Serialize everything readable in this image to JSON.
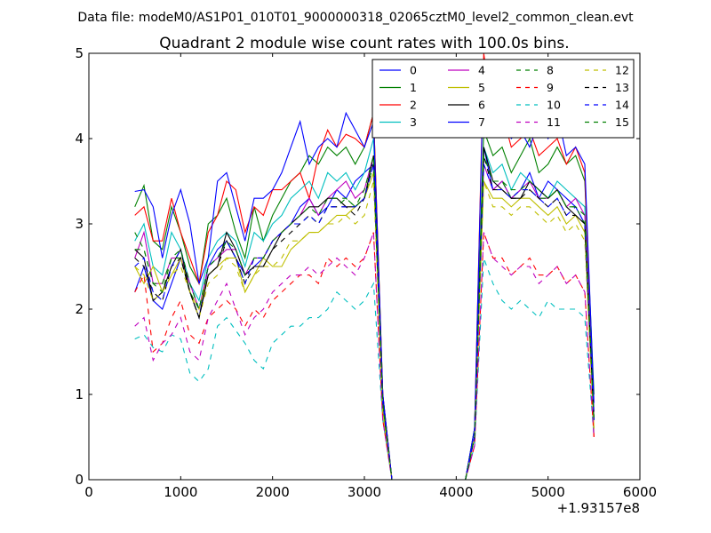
{
  "figure": {
    "suptitle": "Data file: modeM0/AS1P01_010T01_9000000318_02065cztM0_level2_common_clean.evt"
  },
  "chart_data": {
    "type": "line",
    "title": "Quadrant 2 module wise count rates with 100.0s bins.",
    "xlabel": "",
    "ylabel": "",
    "x_offset_label": "+1.93157e8",
    "xlim": [
      0,
      6000
    ],
    "ylim": [
      0,
      5
    ],
    "xticks": [
      0,
      1000,
      2000,
      3000,
      4000,
      5000,
      6000
    ],
    "yticks": [
      0,
      1,
      2,
      3,
      4,
      5
    ],
    "grid": false,
    "legend": {
      "placement": "top-right",
      "columns": 4
    },
    "x": [
      500,
      600,
      700,
      800,
      900,
      1000,
      1100,
      1200,
      1300,
      1400,
      1500,
      1600,
      1700,
      1800,
      1900,
      2000,
      2100,
      2200,
      2300,
      2400,
      2500,
      2600,
      2700,
      2800,
      2900,
      3000,
      3100,
      3200,
      3300,
      3400,
      3500,
      3600,
      3700,
      3800,
      3900,
      4000,
      4100,
      4200,
      4300,
      4400,
      4500,
      4600,
      4700,
      4800,
      4900,
      5000,
      5100,
      5200,
      5300,
      5400,
      5500
    ],
    "series": [
      {
        "name": "0",
        "color": "#0000ff",
        "dash": "solid",
        "values": [
          2.2,
          2.5,
          2.1,
          2.0,
          2.3,
          2.6,
          2.2,
          1.9,
          2.5,
          2.7,
          2.8,
          2.6,
          2.4,
          2.5,
          2.6,
          2.8,
          2.9,
          3.0,
          3.2,
          3.3,
          3.1,
          3.2,
          3.4,
          3.3,
          3.5,
          3.6,
          3.7,
          1.0,
          0,
          0,
          0,
          0,
          0,
          0,
          0,
          0,
          0,
          0.6,
          3.9,
          3.4,
          3.5,
          3.3,
          3.4,
          3.6,
          3.3,
          3.5,
          3.4,
          3.3,
          3.2,
          3.0,
          0.8
        ]
      },
      {
        "name": "1",
        "color": "#008000",
        "dash": "solid",
        "values": [
          3.2,
          3.45,
          2.8,
          2.7,
          3.2,
          2.9,
          2.5,
          2.3,
          3.0,
          3.1,
          3.3,
          2.9,
          2.6,
          3.2,
          2.8,
          3.1,
          3.3,
          3.5,
          3.6,
          3.8,
          3.7,
          3.9,
          3.8,
          3.9,
          3.7,
          3.9,
          4.3,
          1.0,
          0,
          0,
          0,
          0,
          0,
          0,
          0,
          0,
          0,
          0.6,
          4.1,
          3.8,
          3.9,
          3.6,
          3.8,
          4.0,
          3.6,
          3.7,
          3.9,
          3.7,
          3.8,
          3.5,
          1.0
        ]
      },
      {
        "name": "2",
        "color": "#ff0000",
        "dash": "solid",
        "values": [
          3.1,
          3.2,
          2.8,
          2.8,
          3.3,
          2.9,
          2.6,
          2.3,
          2.9,
          3.1,
          3.5,
          3.4,
          2.9,
          3.2,
          3.1,
          3.4,
          3.4,
          3.5,
          3.6,
          3.3,
          3.8,
          4.1,
          3.9,
          4.05,
          4.0,
          3.9,
          4.3,
          1.0,
          0,
          0,
          0,
          0,
          0,
          0,
          0,
          0,
          0,
          0.6,
          5.0,
          4.2,
          4.3,
          3.9,
          4.0,
          4.1,
          3.8,
          3.9,
          4.0,
          3.7,
          3.9,
          3.6,
          0.5
        ]
      },
      {
        "name": "3",
        "color": "#00bfbf",
        "dash": "solid",
        "values": [
          2.8,
          3.0,
          2.5,
          2.4,
          2.9,
          2.7,
          2.3,
          2.1,
          2.6,
          2.8,
          2.9,
          2.8,
          2.5,
          2.9,
          2.8,
          3.0,
          3.1,
          3.3,
          3.4,
          3.5,
          3.3,
          3.6,
          3.5,
          3.6,
          3.4,
          3.6,
          4.0,
          0.9,
          0,
          0,
          0,
          0,
          0,
          0,
          0,
          0,
          0,
          0.6,
          3.9,
          3.6,
          3.7,
          3.4,
          3.6,
          3.5,
          3.4,
          3.3,
          3.5,
          3.4,
          3.3,
          3.2,
          0.7
        ]
      },
      {
        "name": "4",
        "color": "#bf00bf",
        "dash": "solid",
        "values": [
          2.6,
          2.9,
          2.3,
          2.3,
          2.6,
          2.6,
          2.3,
          2.0,
          2.5,
          2.6,
          2.7,
          2.7,
          2.4,
          2.6,
          2.6,
          2.8,
          2.9,
          3.0,
          3.1,
          3.3,
          3.1,
          3.3,
          3.4,
          3.5,
          3.3,
          3.4,
          3.8,
          0.9,
          0,
          0,
          0,
          0,
          0,
          0,
          0,
          0,
          0,
          0.5,
          3.7,
          3.4,
          3.5,
          3.3,
          3.4,
          3.5,
          3.3,
          3.3,
          3.4,
          3.2,
          3.3,
          3.1,
          0.7
        ]
      },
      {
        "name": "5",
        "color": "#bfbf00",
        "dash": "solid",
        "values": [
          2.5,
          2.3,
          2.5,
          2.2,
          2.4,
          2.6,
          2.2,
          2.0,
          2.4,
          2.5,
          2.6,
          2.6,
          2.2,
          2.4,
          2.6,
          2.5,
          2.5,
          2.7,
          2.8,
          2.9,
          2.9,
          3.0,
          3.1,
          3.1,
          3.2,
          3.3,
          3.6,
          0.8,
          0,
          0,
          0,
          0,
          0,
          0,
          0,
          0,
          0,
          0.5,
          3.5,
          3.3,
          3.3,
          3.2,
          3.3,
          3.3,
          3.2,
          3.1,
          3.2,
          3.0,
          3.1,
          2.9,
          0.6
        ]
      },
      {
        "name": "6",
        "color": "#000000",
        "dash": "solid",
        "values": [
          2.7,
          2.6,
          2.1,
          2.2,
          2.5,
          2.7,
          2.2,
          1.9,
          2.4,
          2.5,
          2.9,
          2.7,
          2.4,
          2.5,
          2.5,
          2.7,
          2.9,
          3.0,
          3.1,
          3.2,
          3.2,
          3.3,
          3.3,
          3.2,
          3.2,
          3.3,
          3.8,
          0.9,
          0,
          0,
          0,
          0,
          0,
          0,
          0,
          0,
          0,
          0.5,
          3.9,
          3.5,
          3.4,
          3.3,
          3.3,
          3.5,
          3.4,
          3.3,
          3.4,
          3.2,
          3.1,
          3.0,
          0.7
        ]
      },
      {
        "name": "7",
        "color": "#0000ff",
        "dash": "solid",
        "values": [
          3.38,
          3.4,
          3.2,
          2.6,
          3.1,
          3.4,
          3.0,
          2.3,
          2.6,
          3.5,
          3.6,
          3.2,
          2.8,
          3.3,
          3.3,
          3.4,
          3.6,
          3.9,
          4.2,
          3.7,
          3.9,
          4.0,
          3.9,
          4.3,
          4.1,
          3.9,
          4.2,
          1.0,
          0,
          0,
          0,
          0,
          0,
          0,
          0,
          0,
          0,
          0.6,
          4.9,
          4.2,
          4.2,
          4.0,
          4.1,
          3.9,
          4.2,
          4.0,
          4.3,
          3.8,
          3.9,
          3.7,
          0.9
        ]
      },
      {
        "name": "8",
        "color": "#008000",
        "dash": "dashed",
        "values": [
          2.9,
          2.7,
          2.3,
          2.2,
          2.6,
          2.6,
          2.2,
          2.0,
          2.5,
          2.6,
          2.8,
          2.6,
          2.3,
          2.6,
          2.6,
          2.8,
          2.9,
          3.0,
          3.0,
          3.1,
          3.0,
          3.2,
          3.2,
          3.3,
          3.2,
          3.3,
          3.7,
          0.9,
          0,
          0,
          0,
          0,
          0,
          0,
          0,
          0,
          0,
          0.5,
          3.8,
          3.5,
          3.5,
          3.3,
          3.4,
          3.4,
          3.3,
          3.3,
          3.4,
          3.2,
          3.2,
          3.0,
          0.7
        ]
      },
      {
        "name": "9",
        "color": "#ff0000",
        "dash": "dashed",
        "values": [
          2.2,
          2.4,
          1.5,
          1.6,
          1.9,
          2.1,
          1.7,
          1.6,
          1.9,
          2.0,
          2.1,
          2.0,
          1.8,
          2.0,
          1.9,
          2.1,
          2.2,
          2.3,
          2.4,
          2.4,
          2.3,
          2.6,
          2.5,
          2.6,
          2.5,
          2.6,
          2.9,
          0.7,
          0,
          0,
          0,
          0,
          0,
          0,
          0,
          0,
          0,
          0.4,
          2.9,
          2.6,
          2.6,
          2.4,
          2.5,
          2.6,
          2.4,
          2.4,
          2.5,
          2.3,
          2.4,
          2.2,
          0.5
        ]
      },
      {
        "name": "10",
        "color": "#00bfbf",
        "dash": "dashed",
        "values": [
          1.65,
          1.7,
          1.55,
          1.5,
          1.7,
          1.65,
          1.25,
          1.15,
          1.3,
          1.8,
          1.9,
          1.75,
          1.6,
          1.4,
          1.3,
          1.6,
          1.7,
          1.8,
          1.8,
          1.9,
          1.9,
          2.0,
          2.2,
          2.1,
          2.0,
          2.1,
          2.3,
          0.7,
          0,
          0,
          0,
          0,
          0,
          0,
          0,
          0,
          0,
          0.4,
          2.6,
          2.3,
          2.1,
          2.0,
          2.1,
          2.0,
          1.9,
          2.1,
          2.0,
          2.0,
          2.0,
          1.9,
          0.5
        ]
      },
      {
        "name": "11",
        "color": "#bf00bf",
        "dash": "dashed",
        "values": [
          1.8,
          1.9,
          1.4,
          1.6,
          1.7,
          1.9,
          1.5,
          1.4,
          1.9,
          2.1,
          2.3,
          2.0,
          1.7,
          1.9,
          2.0,
          2.2,
          2.3,
          2.4,
          2.4,
          2.5,
          2.4,
          2.5,
          2.6,
          2.5,
          2.4,
          2.6,
          2.9,
          0.7,
          0,
          0,
          0,
          0,
          0,
          0,
          0,
          0,
          0,
          0.4,
          2.9,
          2.6,
          2.5,
          2.4,
          2.5,
          2.5,
          2.3,
          2.4,
          2.5,
          2.3,
          2.4,
          2.2,
          0.5
        ]
      },
      {
        "name": "12",
        "color": "#bfbf00",
        "dash": "dashed",
        "values": [
          2.5,
          2.4,
          2.1,
          2.2,
          2.4,
          2.5,
          2.2,
          1.9,
          2.3,
          2.4,
          2.6,
          2.5,
          2.2,
          2.4,
          2.5,
          2.5,
          2.6,
          2.8,
          2.8,
          2.9,
          2.9,
          3.0,
          3.0,
          3.1,
          3.0,
          3.1,
          3.5,
          0.8,
          0,
          0,
          0,
          0,
          0,
          0,
          0,
          0,
          0,
          0.5,
          3.5,
          3.2,
          3.2,
          3.1,
          3.2,
          3.2,
          3.1,
          3.0,
          3.1,
          2.9,
          3.0,
          2.8,
          0.6
        ]
      },
      {
        "name": "13",
        "color": "#000000",
        "dash": "dashed",
        "values": [
          2.6,
          2.5,
          2.2,
          2.1,
          2.5,
          2.6,
          2.2,
          1.9,
          2.4,
          2.5,
          2.8,
          2.6,
          2.3,
          2.5,
          2.5,
          2.7,
          2.8,
          2.9,
          3.0,
          3.1,
          3.0,
          3.2,
          3.2,
          3.2,
          3.1,
          3.3,
          3.7,
          0.9,
          0,
          0,
          0,
          0,
          0,
          0,
          0,
          0,
          0,
          0.5,
          3.8,
          3.4,
          3.4,
          3.3,
          3.3,
          3.4,
          3.3,
          3.2,
          3.3,
          3.1,
          3.1,
          3.0,
          0.7
        ]
      },
      {
        "name": "14",
        "color": "#0000ff",
        "dash": "dashed",
        "values": [
          2.5,
          2.6,
          2.2,
          2.1,
          2.5,
          2.7,
          2.3,
          2.0,
          2.5,
          2.6,
          2.8,
          2.6,
          2.3,
          2.6,
          2.6,
          2.8,
          2.9,
          3.0,
          3.0,
          3.1,
          3.0,
          3.2,
          3.2,
          3.2,
          3.2,
          3.3,
          3.7,
          0.9,
          0,
          0,
          0,
          0,
          0,
          0,
          0,
          0,
          0,
          0.5,
          3.7,
          3.4,
          3.4,
          3.3,
          3.4,
          3.4,
          3.3,
          3.2,
          3.3,
          3.1,
          3.2,
          3.0,
          0.7
        ]
      },
      {
        "name": "15",
        "color": "#008000",
        "dash": "dashed",
        "values": [
          2.7,
          2.7,
          2.3,
          2.3,
          2.6,
          2.7,
          2.3,
          2.0,
          2.5,
          2.6,
          2.8,
          2.7,
          2.4,
          2.6,
          2.6,
          2.8,
          2.9,
          3.0,
          3.1,
          3.2,
          3.1,
          3.3,
          3.3,
          3.3,
          3.2,
          3.4,
          3.8,
          0.9,
          0,
          0,
          0,
          0,
          0,
          0,
          0,
          0,
          0,
          0.5,
          3.8,
          3.5,
          3.5,
          3.4,
          3.4,
          3.5,
          3.4,
          3.3,
          3.4,
          3.2,
          3.2,
          3.1,
          0.7
        ]
      }
    ]
  }
}
